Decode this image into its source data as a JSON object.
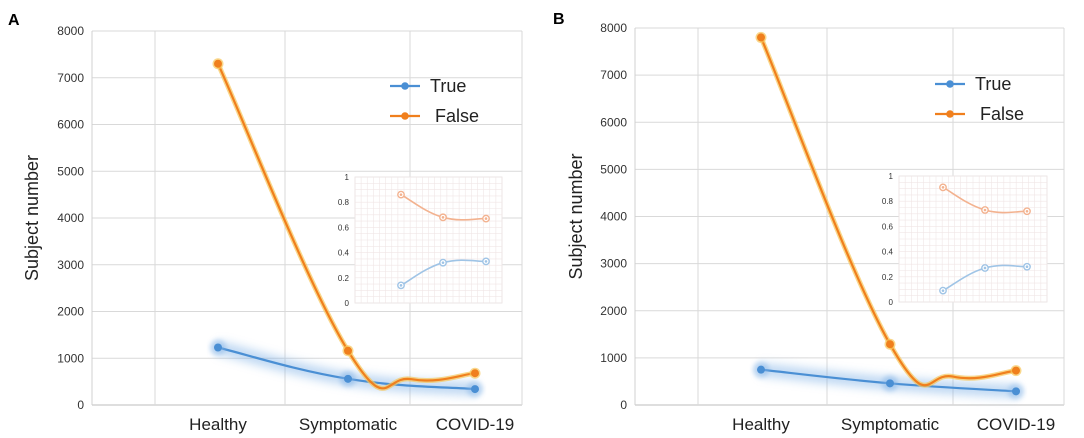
{
  "chart_data": [
    {
      "type": "line",
      "panel_label": "A",
      "categories": [
        "Healthy",
        "Symptomatic",
        "COVID-19"
      ],
      "ylabel": "Subject number",
      "ylim": [
        0,
        8000
      ],
      "yticks": [
        "0",
        "1000",
        "2000",
        "3000",
        "4000",
        "5000",
        "6000",
        "7000",
        "8000"
      ],
      "legend_position": "top-right",
      "series": [
        {
          "name": "True",
          "color": "#4a8fd4",
          "values": [
            1230,
            560,
            340
          ]
        },
        {
          "name": "False",
          "color": "#f07f1d",
          "values": [
            7300,
            1160,
            680
          ]
        }
      ],
      "inset": {
        "type": "line",
        "ylim": [
          0,
          1
        ],
        "yticks": [
          "0",
          "0.2",
          "0.4",
          "0.6",
          "0.8",
          "1"
        ],
        "series": [
          {
            "name": "True",
            "color": "#9fc4e6",
            "values": [
              0.14,
              0.32,
              0.33
            ]
          },
          {
            "name": "False",
            "color": "#f3b28f",
            "values": [
              0.86,
              0.68,
              0.67
            ]
          }
        ]
      }
    },
    {
      "type": "line",
      "panel_label": "B",
      "categories": [
        "Healthy",
        "Symptomatic",
        "COVID-19"
      ],
      "ylabel": "Subject number",
      "ylim": [
        0,
        8000
      ],
      "yticks": [
        "0",
        "1000",
        "2000",
        "3000",
        "4000",
        "5000",
        "6000",
        "7000",
        "8000"
      ],
      "legend_position": "top-right",
      "series": [
        {
          "name": "True",
          "color": "#4a8fd4",
          "values": [
            750,
            460,
            290
          ]
        },
        {
          "name": "False",
          "color": "#f07f1d",
          "values": [
            7800,
            1290,
            730
          ]
        }
      ],
      "inset": {
        "type": "line",
        "ylim": [
          0,
          1
        ],
        "yticks": [
          "0",
          "0.2",
          "0.4",
          "0.6",
          "0.8",
          "1"
        ],
        "series": [
          {
            "name": "True",
            "color": "#9fc4e6",
            "values": [
              0.09,
              0.27,
              0.28
            ]
          },
          {
            "name": "False",
            "color": "#f3b28f",
            "values": [
              0.91,
              0.73,
              0.72
            ]
          }
        ]
      }
    }
  ]
}
